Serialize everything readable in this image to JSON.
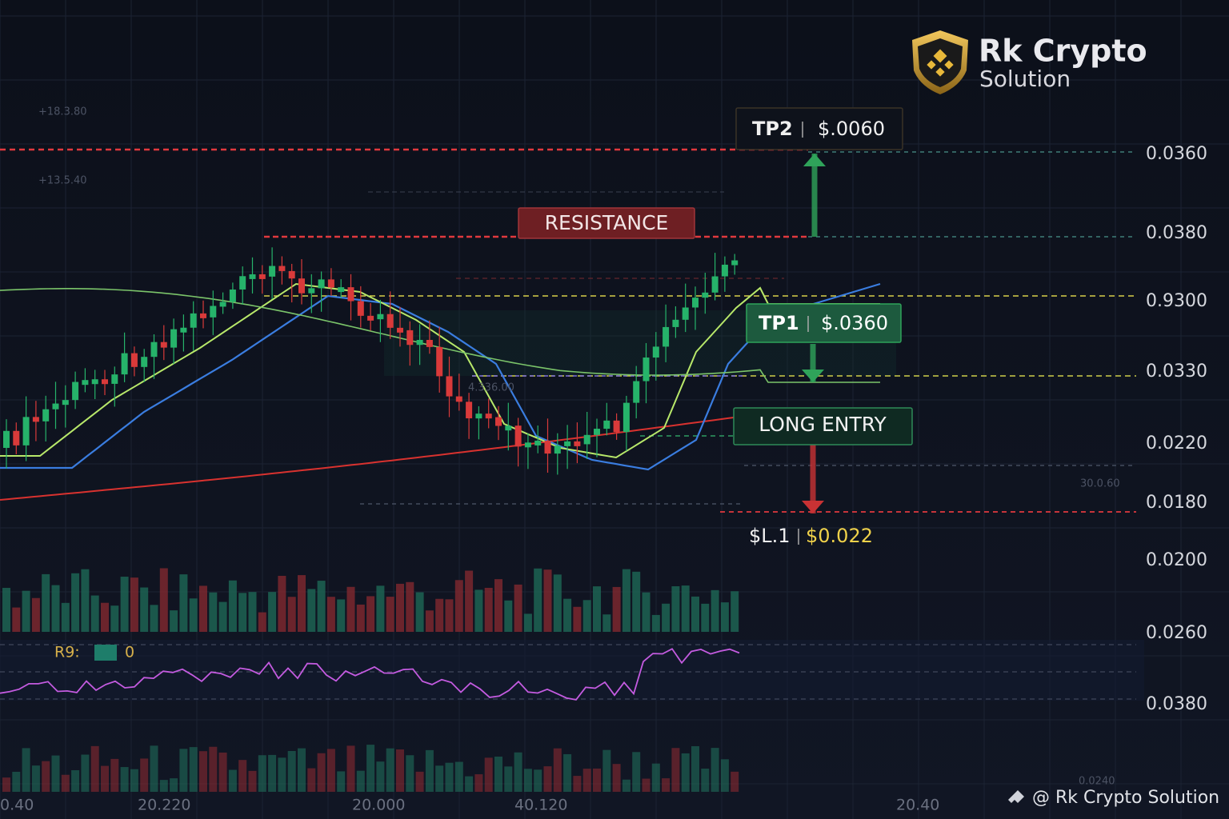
{
  "logo": {
    "title": "Rk Crypto",
    "subtitle": "Solution"
  },
  "annotations": {
    "tp2": {
      "label": "TP2",
      "price": "$.0060"
    },
    "resistance": "RESISTANCE",
    "tp1": {
      "label": "TP1",
      "price": "$.0360"
    },
    "long_entry": "LONG ENTRY",
    "stop_loss": {
      "label": "$L.1",
      "price": "$0.022"
    }
  },
  "price_axis": [
    "0.0360",
    "0.0380",
    "0.9300",
    "0.0330",
    "0.0220",
    "0.0180",
    "0.0200",
    "0.0260",
    "0.0380"
  ],
  "time_axis": [
    "0.40",
    "20.220",
    "20.000",
    "40.120",
    "20.40"
  ],
  "faint_labels": [
    "+18.3.80",
    "+13.5.40",
    "4.336.00",
    "30.0.60",
    "0.0240"
  ],
  "indicator": {
    "name": "R9:",
    "value": "0"
  },
  "watermark": "@ Rk Crypto Solution"
}
